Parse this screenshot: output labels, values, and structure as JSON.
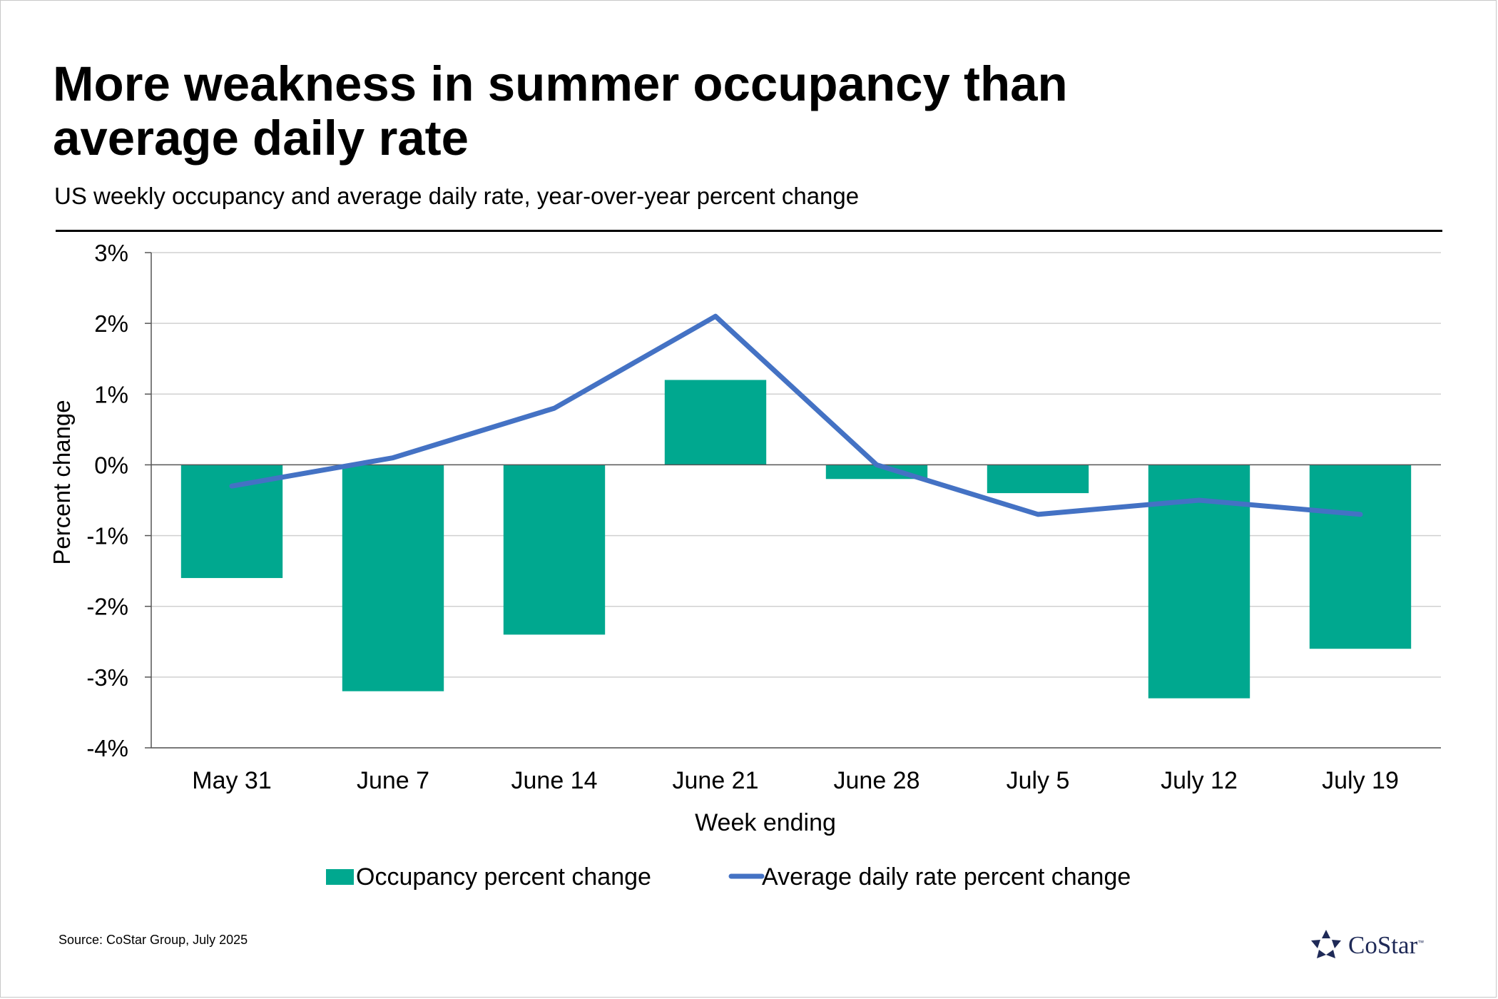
{
  "title": "More weakness in summer occupancy than average daily rate",
  "subtitle": "US weekly occupancy and average daily rate, year-over-year percent change",
  "source": "Source: CoStar Group, July 2025",
  "logo": {
    "word": "CoStar",
    "tm": "™",
    "icon": "costar-star-icon"
  },
  "colors": {
    "bar": "#00a88f",
    "line": "#4472c4",
    "grid": "#d0d0d0",
    "axis": "#000000",
    "logo": "#1f2a57"
  },
  "chart_data": {
    "type": "bar+line",
    "categories": [
      "May 31",
      "June 7",
      "June 14",
      "June 21",
      "June 28",
      "July 5",
      "July 12",
      "July 19"
    ],
    "series": [
      {
        "name": "Occupancy percent change",
        "type": "bar",
        "values": [
          -1.6,
          -3.2,
          -2.4,
          1.2,
          -0.2,
          -0.4,
          -3.3,
          -2.6
        ]
      },
      {
        "name": "Average daily rate percent change",
        "type": "line",
        "values": [
          -0.3,
          0.1,
          0.8,
          2.1,
          0.0,
          -0.7,
          -0.5,
          -0.7
        ]
      }
    ],
    "xlabel": "Week ending",
    "ylabel": "Percent change",
    "ylim": [
      -4,
      3
    ],
    "yticks": [
      3,
      2,
      1,
      0,
      -1,
      -2,
      -3,
      -4
    ],
    "ytick_labels": [
      "3%",
      "2%",
      "1%",
      "0%",
      "-1%",
      "-2%",
      "-3%",
      "-4%"
    ],
    "grid": true,
    "legend_position": "bottom"
  }
}
